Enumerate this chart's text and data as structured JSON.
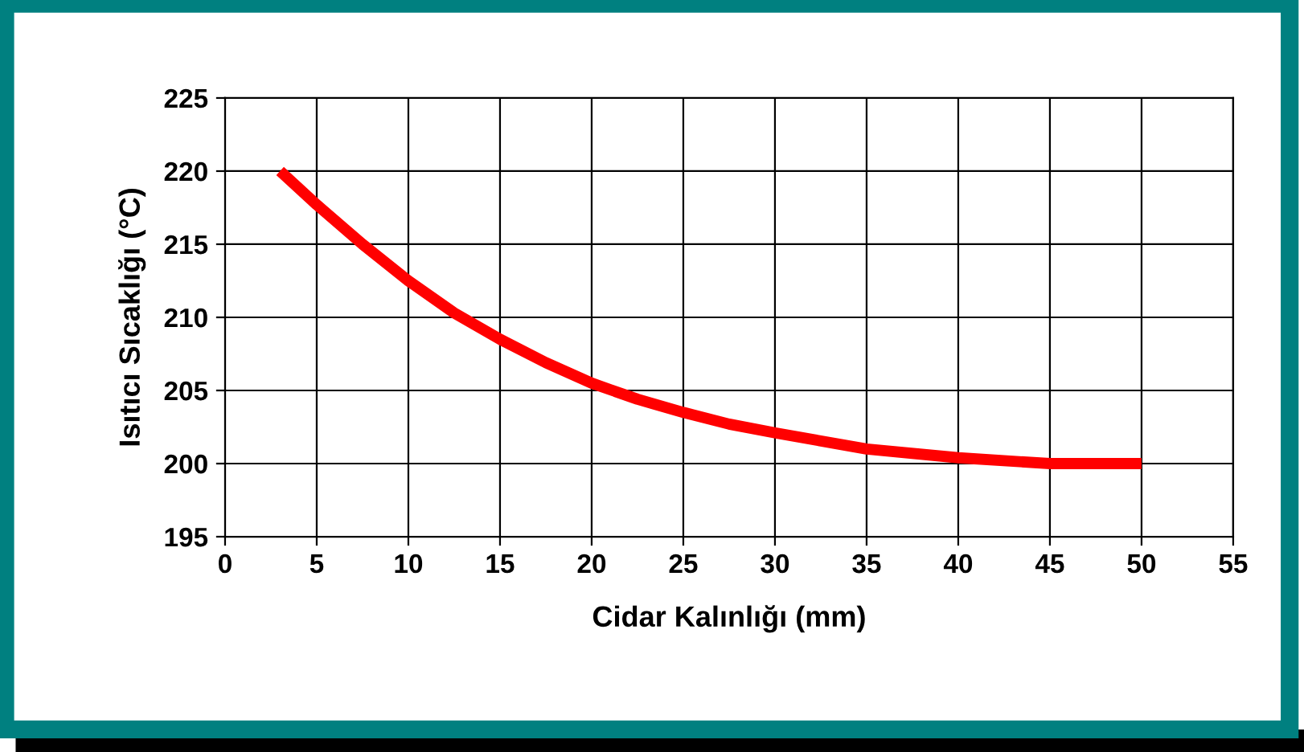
{
  "chart_data": {
    "type": "line",
    "xlabel": "Cidar Kalınlığı (mm)",
    "ylabel": "Isıtıcı Sıcaklığı (°C)",
    "x": [
      3,
      5,
      7.5,
      10,
      12.5,
      15,
      17.5,
      20,
      22.5,
      25,
      27.5,
      30,
      35,
      40,
      45,
      50
    ],
    "series": [
      {
        "color": "#ff0000",
        "values": [
          220,
          217.7,
          215,
          212.5,
          210.3,
          208.5,
          206.9,
          205.5,
          204.4,
          203.5,
          202.7,
          202.1,
          201,
          200.4,
          200,
          200
        ]
      }
    ],
    "xlim": [
      0,
      55
    ],
    "xticks": [
      0,
      5,
      10,
      15,
      20,
      25,
      30,
      35,
      40,
      45,
      50,
      55
    ],
    "ylim": [
      195,
      225
    ],
    "yticks": [
      195,
      200,
      205,
      210,
      215,
      220,
      225
    ],
    "grid": true,
    "marker": "none",
    "line_style": "solid"
  }
}
